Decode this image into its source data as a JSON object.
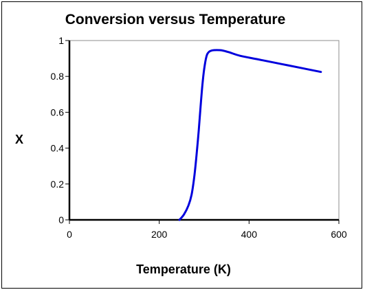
{
  "chart_data": {
    "type": "line",
    "title": "Conversion versus Temperature",
    "xlabel": "Temperature (K)",
    "ylabel": "X",
    "xlim": [
      0,
      600
    ],
    "ylim": [
      0,
      1
    ],
    "x_ticks": [
      "0",
      "200",
      "400",
      "600"
    ],
    "y_ticks": [
      "0",
      "0.2",
      "0.4",
      "0.6",
      "0.8",
      "1"
    ],
    "grid": false,
    "legend": "none",
    "series": [
      {
        "color": "#0000dd",
        "x": [
          245,
          255,
          265,
          272,
          278,
          283,
          288,
          292,
          296,
          300,
          305,
          310,
          318,
          328,
          340,
          355,
          380,
          420,
          470,
          520,
          560
        ],
        "y": [
          0.0,
          0.03,
          0.08,
          0.14,
          0.24,
          0.36,
          0.5,
          0.63,
          0.75,
          0.84,
          0.91,
          0.935,
          0.945,
          0.947,
          0.945,
          0.935,
          0.915,
          0.895,
          0.87,
          0.845,
          0.825
        ]
      }
    ]
  }
}
